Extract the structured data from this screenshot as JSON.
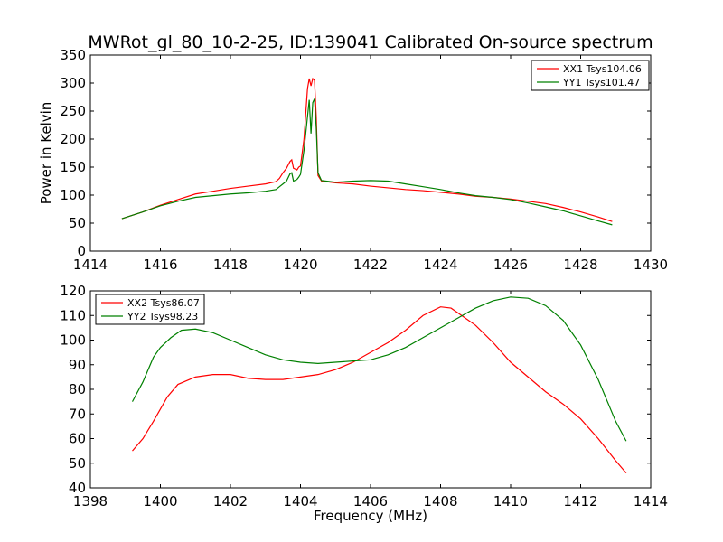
{
  "title": "MWRot_gl_80_10-2-25, ID:139041 Calibrated On-source spectrum",
  "colors": {
    "red": "#ff0000",
    "green": "#008000"
  },
  "chart_data": [
    {
      "type": "line",
      "ylabel": "Power in Kelvin",
      "xlabel": "",
      "xlim": [
        1414,
        1430
      ],
      "ylim": [
        0,
        350
      ],
      "xticks": [
        1414,
        1416,
        1418,
        1420,
        1422,
        1424,
        1426,
        1428,
        1430
      ],
      "yticks": [
        0,
        50,
        100,
        150,
        200,
        250,
        300,
        350
      ],
      "legend_position": "top-right",
      "series": [
        {
          "name": "XX1 Tsys104.06",
          "color": "#ff0000",
          "points": [
            [
              1414.9,
              58
            ],
            [
              1415.5,
              70
            ],
            [
              1416,
              82
            ],
            [
              1416.5,
              92
            ],
            [
              1417,
              102
            ],
            [
              1417.5,
              107
            ],
            [
              1418,
              112
            ],
            [
              1418.5,
              116
            ],
            [
              1419,
              120
            ],
            [
              1419.3,
              124
            ],
            [
              1419.4,
              130
            ],
            [
              1419.5,
              140
            ],
            [
              1419.6,
              148
            ],
            [
              1419.7,
              160
            ],
            [
              1419.75,
              163
            ],
            [
              1419.8,
              148
            ],
            [
              1419.9,
              145
            ],
            [
              1419.95,
              150
            ],
            [
              1420,
              152
            ],
            [
              1420.1,
              200
            ],
            [
              1420.2,
              290
            ],
            [
              1420.25,
              308
            ],
            [
              1420.3,
              295
            ],
            [
              1420.35,
              308
            ],
            [
              1420.4,
              305
            ],
            [
              1420.45,
              240
            ],
            [
              1420.5,
              135
            ],
            [
              1420.6,
              125
            ],
            [
              1421,
              122
            ],
            [
              1421.5,
              120
            ],
            [
              1422,
              116
            ],
            [
              1422.5,
              113
            ],
            [
              1423,
              110
            ],
            [
              1423.5,
              108
            ],
            [
              1424,
              105
            ],
            [
              1424.5,
              102
            ],
            [
              1425,
              98
            ],
            [
              1425.5,
              96
            ],
            [
              1426,
              93
            ],
            [
              1426.5,
              89
            ],
            [
              1427,
              85
            ],
            [
              1427.5,
              78
            ],
            [
              1428,
              70
            ],
            [
              1428.5,
              61
            ],
            [
              1428.9,
              53
            ]
          ]
        },
        {
          "name": "YY1 Tsys101.47",
          "color": "#008000",
          "points": [
            [
              1414.9,
              58
            ],
            [
              1415.5,
              70
            ],
            [
              1416,
              81
            ],
            [
              1416.5,
              89
            ],
            [
              1417,
              96
            ],
            [
              1417.5,
              99
            ],
            [
              1418,
              102
            ],
            [
              1418.5,
              104
            ],
            [
              1419,
              107
            ],
            [
              1419.3,
              110
            ],
            [
              1419.4,
              115
            ],
            [
              1419.5,
              120
            ],
            [
              1419.6,
              125
            ],
            [
              1419.7,
              138
            ],
            [
              1419.75,
              140
            ],
            [
              1419.8,
              125
            ],
            [
              1419.9,
              128
            ],
            [
              1419.95,
              132
            ],
            [
              1420,
              137
            ],
            [
              1420.1,
              180
            ],
            [
              1420.2,
              240
            ],
            [
              1420.25,
              270
            ],
            [
              1420.3,
              210
            ],
            [
              1420.35,
              265
            ],
            [
              1420.4,
              272
            ],
            [
              1420.45,
              220
            ],
            [
              1420.5,
              140
            ],
            [
              1420.6,
              126
            ],
            [
              1421,
              123
            ],
            [
              1421.5,
              125
            ],
            [
              1422,
              126
            ],
            [
              1422.5,
              125
            ],
            [
              1423,
              120
            ],
            [
              1423.5,
              115
            ],
            [
              1424,
              110
            ],
            [
              1424.5,
              104
            ],
            [
              1425,
              99
            ],
            [
              1425.5,
              96
            ],
            [
              1426,
              92
            ],
            [
              1426.5,
              86
            ],
            [
              1427,
              79
            ],
            [
              1427.5,
              72
            ],
            [
              1428,
              63
            ],
            [
              1428.5,
              54
            ],
            [
              1428.9,
              47
            ]
          ]
        }
      ]
    },
    {
      "type": "line",
      "ylabel": "",
      "xlabel": "Frequency (MHz)",
      "xlim": [
        1398,
        1414
      ],
      "ylim": [
        40,
        120
      ],
      "xticks": [
        1398,
        1400,
        1402,
        1404,
        1406,
        1408,
        1410,
        1412,
        1414
      ],
      "yticks": [
        40,
        50,
        60,
        70,
        80,
        90,
        100,
        110,
        120
      ],
      "legend_position": "top-left",
      "series": [
        {
          "name": "XX2 Tsys86.07",
          "color": "#ff0000",
          "points": [
            [
              1399.2,
              55
            ],
            [
              1399.5,
              60
            ],
            [
              1399.8,
              67
            ],
            [
              1400,
              72
            ],
            [
              1400.2,
              77
            ],
            [
              1400.5,
              82
            ],
            [
              1401,
              85
            ],
            [
              1401.5,
              86
            ],
            [
              1402,
              86
            ],
            [
              1402.5,
              84.5
            ],
            [
              1403,
              84
            ],
            [
              1403.5,
              84
            ],
            [
              1404,
              85
            ],
            [
              1404.5,
              86
            ],
            [
              1405,
              88
            ],
            [
              1405.5,
              91
            ],
            [
              1406,
              95
            ],
            [
              1406.5,
              99
            ],
            [
              1407,
              104
            ],
            [
              1407.5,
              110
            ],
            [
              1408,
              113.5
            ],
            [
              1408.3,
              113
            ],
            [
              1408.6,
              110
            ],
            [
              1409,
              106
            ],
            [
              1409.5,
              99
            ],
            [
              1410,
              91
            ],
            [
              1410.5,
              85
            ],
            [
              1411,
              79
            ],
            [
              1411.5,
              74
            ],
            [
              1412,
              68
            ],
            [
              1412.5,
              60
            ],
            [
              1413,
              51
            ],
            [
              1413.3,
              46
            ]
          ]
        },
        {
          "name": "YY2 Tsys98.23",
          "color": "#008000",
          "points": [
            [
              1399.2,
              75
            ],
            [
              1399.5,
              83
            ],
            [
              1399.8,
              93
            ],
            [
              1400,
              97
            ],
            [
              1400.3,
              101
            ],
            [
              1400.6,
              104
            ],
            [
              1401,
              104.5
            ],
            [
              1401.5,
              103
            ],
            [
              1402,
              100
            ],
            [
              1402.5,
              97
            ],
            [
              1403,
              94
            ],
            [
              1403.5,
              92
            ],
            [
              1404,
              91
            ],
            [
              1404.5,
              90.5
            ],
            [
              1405,
              91
            ],
            [
              1405.5,
              91.5
            ],
            [
              1406,
              92
            ],
            [
              1406.5,
              94
            ],
            [
              1407,
              97
            ],
            [
              1407.5,
              101
            ],
            [
              1408,
              105
            ],
            [
              1408.5,
              109
            ],
            [
              1409,
              113
            ],
            [
              1409.5,
              116
            ],
            [
              1410,
              117.5
            ],
            [
              1410.5,
              117
            ],
            [
              1411,
              114
            ],
            [
              1411.5,
              108
            ],
            [
              1412,
              98
            ],
            [
              1412.5,
              84
            ],
            [
              1413,
              67
            ],
            [
              1413.3,
              59
            ]
          ]
        }
      ]
    }
  ]
}
